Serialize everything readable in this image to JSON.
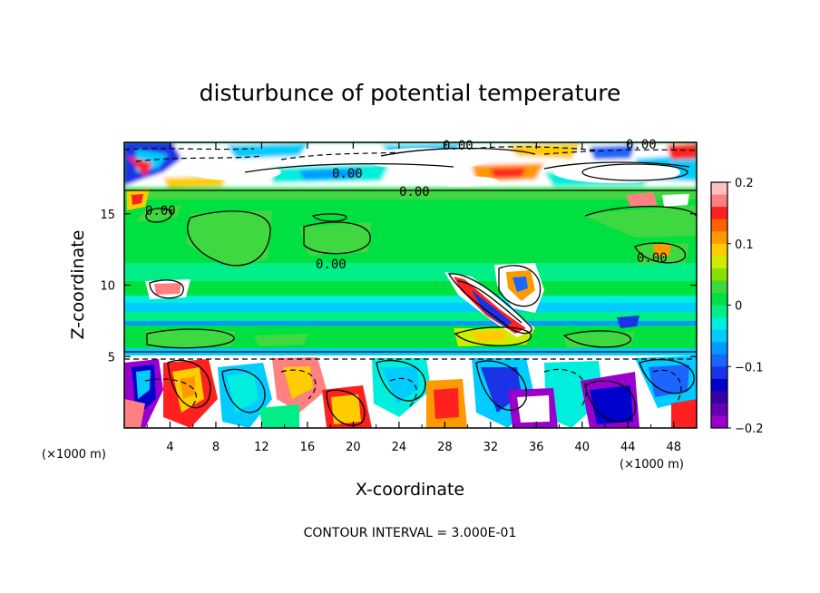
{
  "chart_data": {
    "type": "heatmap",
    "title": "disturbunce of potential temperature",
    "xlabel": "X-coordinate",
    "ylabel": "Z-coordinate",
    "x_unit": "(×1000 m)",
    "z_unit": "(×1000 m)",
    "xlim": [
      0,
      50
    ],
    "ylim": [
      0,
      20
    ],
    "x_ticks": [
      4,
      8,
      12,
      16,
      20,
      24,
      28,
      32,
      36,
      40,
      44,
      48
    ],
    "y_ticks": [
      5,
      10,
      15
    ],
    "colorbar": {
      "range": [
        -0.2,
        0.2
      ],
      "ticks": [
        "0.2",
        "0.1",
        "0",
        "−0.1",
        "−0.2"
      ],
      "colors": [
        "#ffc0c0",
        "#ff8080",
        "#ff2020",
        "#ff6000",
        "#ff9900",
        "#ffcc00",
        "#ccee00",
        "#88e000",
        "#40d840",
        "#00e040",
        "#00ee88",
        "#00eedd",
        "#00ccff",
        "#0099ff",
        "#1a66ff",
        "#1a33e6",
        "#0000cc",
        "#3300aa",
        "#6600b3",
        "#9900cc"
      ]
    },
    "contour_labels": [
      "0.00",
      "0.00",
      "0.00",
      "0.00",
      "0.00",
      "0.00",
      "0.00"
    ],
    "contour_interval_label": "CONTOUR INTERVAL = 3.000E-01",
    "grid": false
  }
}
